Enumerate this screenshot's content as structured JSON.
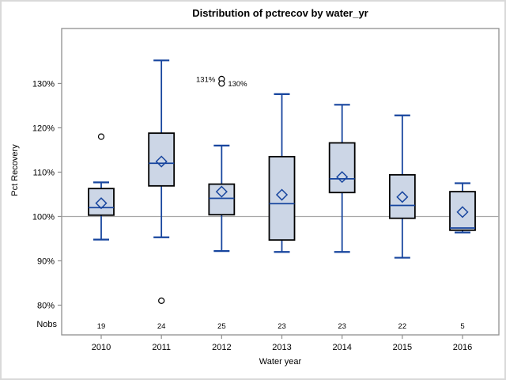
{
  "figure": {
    "title": "Distribution of pctrecov by water_yr",
    "ylabel": "Pct Recovery",
    "xlabel": "Water year",
    "nobs_label": "Nobs"
  },
  "colors": {
    "box_fill": "#ccd6e6",
    "box_border": "#000000",
    "line_blue": "#17459e",
    "wall_gray": "#8f8f8f",
    "ref_gray": "#a8a8a8",
    "outer_border": "#d9d9d9",
    "text": "#000000"
  },
  "chart_data": {
    "type": "boxplot",
    "title": "Distribution of pctrecov by water_yr",
    "xlabel": "Water year",
    "ylabel": "Pct Recovery",
    "ylim": [
      73.3,
      142.4
    ],
    "yticks": [
      80,
      90,
      100,
      110,
      120,
      130
    ],
    "ytick_suffix": "%",
    "reference_line": 100,
    "grid": false,
    "legend": "none",
    "categories": [
      "2010",
      "2011",
      "2012",
      "2013",
      "2014",
      "2015",
      "2016"
    ],
    "nobs": [
      19,
      24,
      25,
      23,
      23,
      22,
      5
    ],
    "series": [
      {
        "category": "2010",
        "n": 19,
        "whisker_low": 94.8,
        "q1": 100.3,
        "median": 102.0,
        "q3": 106.3,
        "whisker_high": 107.7,
        "mean": 103.0,
        "outliers": [
          {
            "value": 118
          }
        ]
      },
      {
        "category": "2011",
        "n": 24,
        "whisker_low": 95.3,
        "q1": 106.9,
        "median": 112.0,
        "q3": 118.8,
        "whisker_high": 135.2,
        "mean": 112.4,
        "outliers": [
          {
            "value": 81
          }
        ]
      },
      {
        "category": "2012",
        "n": 25,
        "whisker_low": 92.2,
        "q1": 100.4,
        "median": 104.1,
        "q3": 107.3,
        "whisker_high": 116.0,
        "mean": 105.6,
        "outliers": [
          {
            "value": 131,
            "label": "131%",
            "label_side": "left"
          },
          {
            "value": 130,
            "label": "130%",
            "label_side": "right"
          }
        ]
      },
      {
        "category": "2013",
        "n": 23,
        "whisker_low": 92.0,
        "q1": 94.7,
        "median": 102.9,
        "q3": 113.5,
        "whisker_high": 127.6,
        "mean": 104.9,
        "outliers": []
      },
      {
        "category": "2014",
        "n": 23,
        "whisker_low": 92.0,
        "q1": 105.4,
        "median": 108.5,
        "q3": 116.6,
        "whisker_high": 125.2,
        "mean": 108.9,
        "outliers": []
      },
      {
        "category": "2015",
        "n": 22,
        "whisker_low": 90.7,
        "q1": 99.6,
        "median": 102.5,
        "q3": 109.4,
        "whisker_high": 122.8,
        "mean": 104.4,
        "outliers": []
      },
      {
        "category": "2016",
        "n": 5,
        "whisker_low": 96.4,
        "q1": 96.9,
        "median": 97.4,
        "q3": 105.6,
        "whisker_high": 107.5,
        "mean": 101.0,
        "outliers": []
      }
    ]
  }
}
